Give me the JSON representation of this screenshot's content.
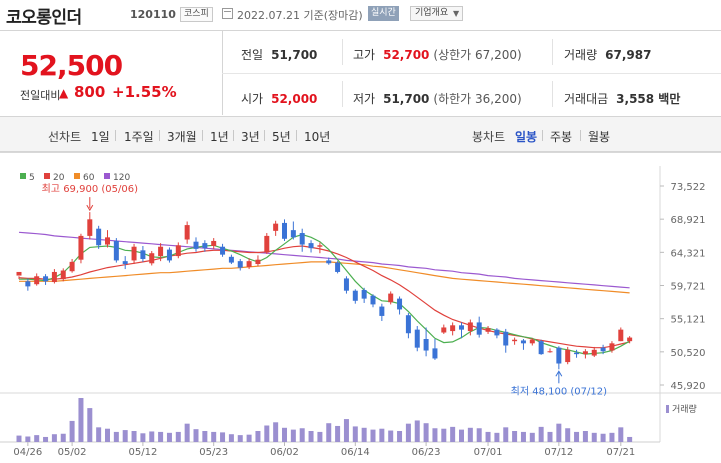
{
  "header": {
    "stock_name": "코오롱인더",
    "code": "120110",
    "market": "코스피",
    "date_text": "2022.07.21  기준(장마감)",
    "realtime_label": "실시간",
    "company_info_label": "기업개요"
  },
  "price": {
    "current": "52,500",
    "compare_label": "전일대비",
    "change": "800",
    "change_rate": "+1.55%",
    "color_up": "#e2131e"
  },
  "stats": {
    "prev_close_label": "전일",
    "prev_close": "51,700",
    "high_label": "고가",
    "high": "52,700",
    "high_sub": "(상한가 67,200)",
    "volume_label": "거래량",
    "volume": "67,987",
    "open_label": "시가",
    "open": "52,000",
    "low_label": "저가",
    "low": "51,700",
    "low_sub": "(하한가 36,200)",
    "amount_label": "거래대금",
    "amount": "3,558 백만"
  },
  "period_bar": {
    "line_chart_label": "선차트",
    "periods": [
      "1일",
      "1주일",
      "3개월",
      "1년",
      "3년",
      "5년",
      "10년"
    ],
    "candle_chart_label": "봉차트",
    "candle_periods": [
      "일봉",
      "주봉",
      "월봉"
    ],
    "active_candle": "일봉"
  },
  "chart_data": {
    "type": "candlestick",
    "legend": [
      {
        "name": "5",
        "color": "#4caf50"
      },
      {
        "name": "20",
        "color": "#e0413c"
      },
      {
        "name": "60",
        "color": "#f08c28"
      },
      {
        "name": "120",
        "color": "#9b59d0"
      }
    ],
    "y_ticks": [
      "73,522",
      "68,921",
      "64,321",
      "59,721",
      "55,121",
      "50,520",
      "45,920"
    ],
    "y_tick_values": [
      73522,
      68921,
      64321,
      59721,
      55121,
      50520,
      45920
    ],
    "x_ticks": [
      "04/26",
      "05/02",
      "05/12",
      "05/23",
      "06/02",
      "06/14",
      "06/23",
      "07/01",
      "07/12",
      "07/21"
    ],
    "x_tick_index": [
      1,
      6,
      14,
      22,
      30,
      38,
      46,
      53,
      61,
      68
    ],
    "annotations": {
      "max_label": "최고 69,900 (05/06)",
      "min_label": "최저 48,100 (07/12)"
    },
    "volume_label": "거래량",
    "candles": [
      [
        61100,
        61600,
        61000,
        60600
      ],
      [
        60300,
        59600,
        60700,
        59000
      ],
      [
        59900,
        61000,
        61400,
        59700
      ],
      [
        61000,
        60300,
        61300,
        59800
      ],
      [
        60200,
        61600,
        62000,
        60000
      ],
      [
        60600,
        61800,
        62100,
        60300
      ],
      [
        61700,
        63000,
        63400,
        61500
      ],
      [
        63300,
        66600,
        66900,
        62800
      ],
      [
        66600,
        68900,
        69900,
        66100
      ],
      [
        67600,
        65300,
        68000,
        64800
      ],
      [
        65400,
        66400,
        67400,
        65000
      ],
      [
        65900,
        63200,
        66300,
        62900
      ],
      [
        63100,
        62700,
        63800,
        62000
      ],
      [
        63200,
        65100,
        65500,
        62700
      ],
      [
        64600,
        63400,
        65200,
        63000
      ],
      [
        62800,
        64200,
        64500,
        62500
      ],
      [
        63800,
        65100,
        65600,
        63100
      ],
      [
        64700,
        63200,
        65000,
        62900
      ],
      [
        63800,
        65300,
        65700,
        63500
      ],
      [
        66100,
        68100,
        68600,
        65500
      ],
      [
        65800,
        64800,
        66400,
        64400
      ],
      [
        65600,
        64900,
        66000,
        64400
      ],
      [
        65200,
        65900,
        66300,
        64800
      ],
      [
        65100,
        64000,
        65500,
        63700
      ],
      [
        63700,
        62900,
        64000,
        62700
      ],
      [
        63100,
        62200,
        63400,
        61800
      ],
      [
        62300,
        63100,
        63500,
        62000
      ],
      [
        62700,
        63300,
        63900,
        62400
      ],
      [
        64300,
        66600,
        67000,
        64100
      ],
      [
        67300,
        68300,
        68700,
        66600
      ],
      [
        68400,
        66200,
        68900,
        65900
      ],
      [
        67400,
        66400,
        68600,
        66100
      ],
      [
        67000,
        65400,
        67600,
        64400
      ],
      [
        65600,
        64900,
        66000,
        64300
      ],
      [
        65100,
        65300,
        65700,
        64200
      ],
      [
        63200,
        62800,
        63600,
        62600
      ],
      [
        62900,
        61600,
        63100,
        61400
      ],
      [
        60700,
        59000,
        61000,
        58600
      ],
      [
        59000,
        57600,
        59200,
        57200
      ],
      [
        59100,
        57900,
        59400,
        57300
      ],
      [
        58300,
        57100,
        58500,
        56700
      ],
      [
        56800,
        55500,
        57200,
        54800
      ],
      [
        57400,
        58600,
        58900,
        57100
      ],
      [
        57900,
        56400,
        58200,
        55700
      ],
      [
        55600,
        53100,
        55900,
        52400
      ],
      [
        53600,
        51100,
        54100,
        50600
      ],
      [
        52300,
        50700,
        53900,
        49900
      ],
      [
        51000,
        49600,
        52300,
        49400
      ],
      [
        53200,
        53900,
        54300,
        53000
      ],
      [
        53400,
        54200,
        54600,
        52800
      ],
      [
        54200,
        53600,
        54600,
        52400
      ],
      [
        53400,
        54600,
        55000,
        52800
      ],
      [
        54600,
        52900,
        55400,
        52500
      ],
      [
        53300,
        53800,
        54100,
        53000
      ],
      [
        53600,
        52800,
        53800,
        52400
      ],
      [
        53300,
        51400,
        53700,
        50400
      ],
      [
        52000,
        52200,
        52500,
        51500
      ],
      [
        52100,
        51700,
        52300,
        50800
      ],
      [
        51700,
        52200,
        52400,
        51400
      ],
      [
        52000,
        50200,
        52200,
        50100
      ],
      [
        50600,
        50600,
        51000,
        50400
      ],
      [
        51100,
        48900,
        51300,
        48100
      ],
      [
        49100,
        50800,
        51200,
        48800
      ],
      [
        50400,
        50200,
        50800,
        49700
      ],
      [
        50200,
        50600,
        50900,
        49600
      ],
      [
        50000,
        50800,
        51200,
        49800
      ],
      [
        51100,
        50600,
        51500,
        50200
      ],
      [
        50700,
        51700,
        52000,
        50400
      ],
      [
        52000,
        53600,
        53900,
        52000
      ],
      [
        52000,
        52500,
        52700,
        51700
      ]
    ],
    "volumes": [
      14,
      12,
      15,
      11,
      17,
      18,
      46,
      96,
      74,
      32,
      29,
      22,
      26,
      24,
      19,
      23,
      22,
      20,
      22,
      40,
      28,
      24,
      22,
      21,
      17,
      15,
      16,
      24,
      36,
      43,
      31,
      27,
      30,
      24,
      22,
      41,
      35,
      50,
      34,
      31,
      27,
      29,
      25,
      24,
      40,
      47,
      41,
      30,
      29,
      33,
      27,
      31,
      30,
      22,
      20,
      32,
      24,
      22,
      20,
      33,
      22,
      40,
      30,
      22,
      24,
      20,
      18,
      20,
      32,
      11
    ],
    "ma5": [
      60600,
      60600,
      60500,
      60400,
      60800,
      61500,
      62700,
      64100,
      65000,
      65100,
      65200,
      65000,
      64600,
      64500,
      64200,
      63700,
      63600,
      63800,
      64300,
      64800,
      65000,
      65200,
      65300,
      64900,
      64500,
      64000,
      63400,
      63000,
      63600,
      64600,
      65500,
      66400,
      66800,
      66400,
      65800,
      64700,
      63300,
      61800,
      60300,
      59100,
      58300,
      57600,
      57500,
      57200,
      56100,
      54800,
      53600,
      52400,
      51800,
      51900,
      52500,
      53300,
      53900,
      53800,
      53500,
      53200,
      52900,
      52600,
      52400,
      51800,
      51400,
      51000,
      50800,
      50500,
      50200,
      50300,
      50400,
      50700,
      51300,
      52000
    ],
    "ma20": [
      60800,
      60700,
      60700,
      60600,
      60600,
      60700,
      60900,
      61200,
      61600,
      61900,
      62200,
      62400,
      62600,
      62800,
      63000,
      63200,
      63500,
      63800,
      64000,
      64200,
      64300,
      64500,
      64600,
      64600,
      64500,
      64400,
      64300,
      64300,
      64400,
      64600,
      64900,
      65100,
      65200,
      65000,
      64800,
      64500,
      64100,
      63600,
      63000,
      62400,
      61800,
      61100,
      60500,
      59800,
      59000,
      58100,
      57200,
      56300,
      55600,
      55000,
      54600,
      54200,
      53800,
      53500,
      53200,
      53000,
      52800,
      52600,
      52300,
      52100,
      51900,
      51700,
      51500,
      51300,
      51200,
      51100,
      51100,
      51300,
      51600,
      51900
    ],
    "ma60": [
      60300,
      60300,
      60300,
      60300,
      60300,
      60400,
      60500,
      60600,
      60700,
      60800,
      60900,
      61000,
      61100,
      61200,
      61300,
      61400,
      61500,
      61500,
      61600,
      61700,
      61800,
      61900,
      62000,
      62100,
      62100,
      62200,
      62300,
      62400,
      62500,
      62600,
      62700,
      62800,
      62900,
      63000,
      63000,
      63000,
      62900,
      62800,
      62700,
      62600,
      62400,
      62300,
      62100,
      61900,
      61700,
      61500,
      61300,
      61100,
      60900,
      60700,
      60600,
      60500,
      60400,
      60300,
      60200,
      60100,
      60000,
      59900,
      59800,
      59700,
      59600,
      59500,
      59400,
      59300,
      59200,
      59100,
      59000,
      58900,
      58800,
      58700
    ],
    "ma120": [
      67100,
      67000,
      66900,
      66800,
      66600,
      66500,
      66400,
      66300,
      66200,
      66100,
      66000,
      65900,
      65800,
      65700,
      65600,
      65500,
      65400,
      65300,
      65200,
      65100,
      65000,
      64900,
      64800,
      64700,
      64600,
      64500,
      64400,
      64300,
      64200,
      64100,
      64000,
      63900,
      63800,
      63700,
      63600,
      63500,
      63400,
      63200,
      63100,
      63000,
      62900,
      62700,
      62600,
      62500,
      62300,
      62200,
      62100,
      61900,
      61800,
      61700,
      61500,
      61400,
      61300,
      61100,
      61000,
      60900,
      60700,
      60600,
      60500,
      60400,
      60300,
      60200,
      60100,
      60000,
      59900,
      59800,
      59700,
      59600,
      59500,
      59400
    ]
  }
}
